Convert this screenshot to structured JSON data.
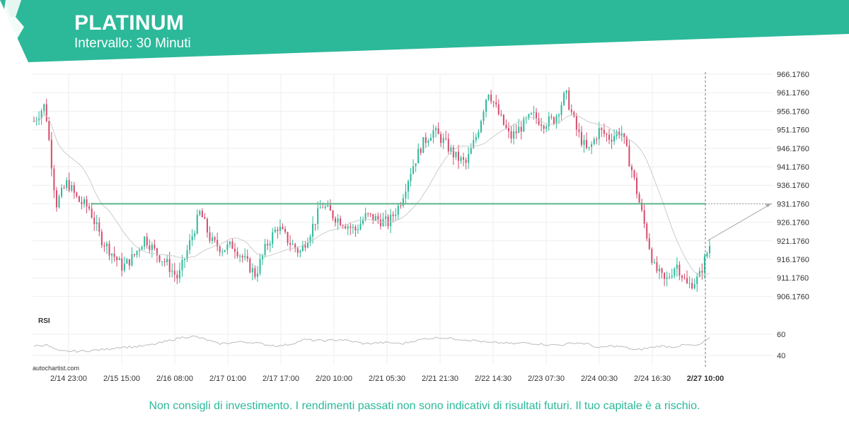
{
  "header": {
    "title": "PLATINUM",
    "subtitle": "Intervallo: 30 Minuti",
    "band_color": "#2bb99a",
    "logo_icon": "autochartist-logo-icon"
  },
  "watermark": "autochartist.com",
  "disclaimer": "Non consigli di investimento. I rendimenti passati non sono indicativi di risultati futuri. Il tuo capitale è a rischio.",
  "chart_data": {
    "type": "candlestick",
    "x_ticks": [
      "2/14 23:00",
      "2/15 15:00",
      "2/16 08:00",
      "2/17 01:00",
      "2/17 17:00",
      "2/20 10:00",
      "2/21 05:30",
      "2/21 21:30",
      "2/22 14:30",
      "2/23 07:30",
      "2/24 00:30",
      "2/24 16:30",
      "2/27 10:00"
    ],
    "highlighted_x_tick": "2/27 10:00",
    "y_ticks": [
      "966.1760",
      "961.1760",
      "956.1760",
      "951.1760",
      "946.1760",
      "941.1760",
      "936.1760",
      "931.1760",
      "926.1760",
      "921.1760",
      "916.1760",
      "911.1760",
      "906.1760"
    ],
    "ylim": [
      906.176,
      966.176
    ],
    "series": [
      {
        "price_path": [
          953.5,
          958,
          931,
          937,
          932,
          930,
          922,
          918,
          914,
          917,
          922,
          918,
          915,
          911,
          920,
          929,
          921,
          919,
          920,
          916,
          912,
          920,
          925,
          921,
          918,
          924,
          931,
          928,
          926,
          924,
          928,
          927,
          926,
          931,
          940,
          947,
          951,
          948,
          944,
          942,
          950,
          962,
          955,
          949,
          952,
          955,
          953,
          954,
          961,
          951,
          945,
          951,
          949,
          951,
          940,
          927,
          914,
          910,
          915,
          909,
          911,
          920
        ],
        "colors": {
          "up": "#2bb99a",
          "down": "#d64b6a"
        }
      }
    ],
    "moving_average_color": "#cccccc",
    "resistance_level": 931.176,
    "resistance_color": "#5cb58a",
    "rsi": {
      "label": "RSI",
      "y_ticks": [
        "60",
        "40"
      ],
      "ylim": [
        40,
        60
      ],
      "values": [
        49,
        50,
        44,
        44,
        44,
        45,
        46,
        48,
        48,
        49,
        51,
        54,
        57,
        58,
        55,
        51,
        52,
        53,
        52,
        50,
        49,
        51,
        55,
        54,
        54,
        55,
        53,
        51,
        52,
        52,
        51,
        54,
        56,
        57,
        56,
        55,
        54,
        52,
        52,
        51,
        52,
        51,
        50,
        50,
        52,
        51,
        47,
        49,
        48,
        45,
        47,
        49,
        48,
        50,
        49,
        56
      ]
    },
    "projection": {
      "from": 921.2,
      "to": 931.176
    }
  }
}
